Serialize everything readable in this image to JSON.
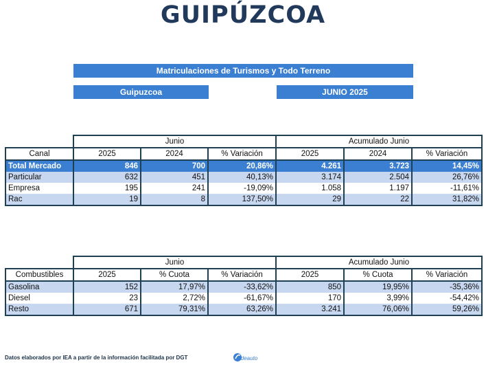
{
  "title": "GUIPÚZCOA",
  "banner_title": "Matriculaciones de Turismos y Todo Terreno",
  "province": "Guipuzcoa",
  "period": "JUNIO 2025",
  "table1": {
    "group_junio": "Junio",
    "group_acum": "Acumulado Junio",
    "headers": [
      "Canal",
      "2025",
      "2024",
      "% Variación",
      "2025",
      "2024",
      "% Variación"
    ],
    "rows": [
      [
        "Total Mercado",
        "846",
        "700",
        "20,86%",
        "4.261",
        "3.723",
        "14,45%"
      ],
      [
        "Particular",
        "632",
        "451",
        "40,13%",
        "3.174",
        "2.504",
        "26,76%"
      ],
      [
        "Empresa",
        "195",
        "241",
        "-19,09%",
        "1.058",
        "1.197",
        "-11,61%"
      ],
      [
        "Rac",
        "19",
        "8",
        "137,50%",
        "29",
        "22",
        "31,82%"
      ]
    ]
  },
  "table2": {
    "group_junio": "Junio",
    "group_acum": "Acumulado Junio",
    "headers": [
      "Combustibles",
      "2025",
      "% Cuota",
      "% Variación",
      "2025",
      "% Cuota",
      "% Variación"
    ],
    "rows": [
      [
        "Gasolina",
        "152",
        "17,97%",
        "-33,62%",
        "850",
        "19,95%",
        "-35,36%"
      ],
      [
        "Diesel",
        "23",
        "2,72%",
        "-61,67%",
        "170",
        "3,99%",
        "-54,42%"
      ],
      [
        "Resto",
        "671",
        "79,31%",
        "63,26%",
        "3.241",
        "76,06%",
        "59,26%"
      ]
    ]
  },
  "footer": "Datos elaborados por IEA a partir de la información facilitada por DGT",
  "logo_text": "ideauto",
  "colors": {
    "accent": "#3a7fd1",
    "title": "#213a5c",
    "row_light": "#c7d7f0",
    "border": "#1e4052"
  }
}
